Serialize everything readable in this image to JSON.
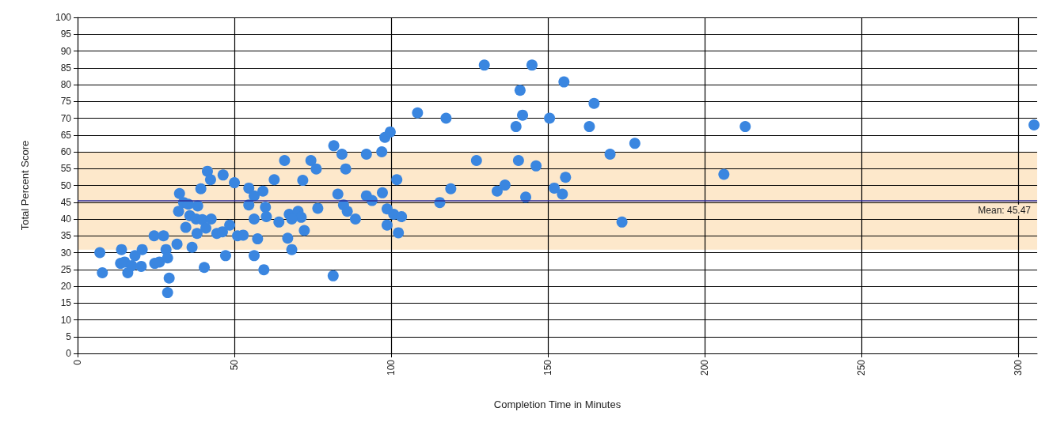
{
  "chart_data": {
    "type": "scatter",
    "xlabel": "Completion Time in Minutes",
    "ylabel": "Total Percent Score",
    "x": [
      7.1,
      7.9,
      14.0,
      13.7,
      15.0,
      16.0,
      17.3,
      18.3,
      20.6,
      20.3,
      24.4,
      24.6,
      26.1,
      27.4,
      28.2,
      28.7,
      29.2,
      28.7,
      31.7,
      32.5,
      33.8,
      35.3,
      38.3,
      32.2,
      35.8,
      37.8,
      39.8,
      42.6,
      34.5,
      38.1,
      40.9,
      44.4,
      46.2,
      48.5,
      36.5,
      40.4,
      47.2,
      41.4,
      42.4,
      39.3,
      46.4,
      50.0,
      51.0,
      52.8,
      54.6,
      54.6,
      56.3,
      59.1,
      59.9,
      60.2,
      56.3,
      57.4,
      56.3,
      59.4,
      66.0,
      62.7,
      64.2,
      67.0,
      68.3,
      67.5,
      70.3,
      71.3,
      68.3,
      72.3,
      71.8,
      74.4,
      76.1,
      76.6,
      81.7,
      84.3,
      85.5,
      83.0,
      84.8,
      86.0,
      88.6,
      81.5,
      92.1,
      97.0,
      98.0,
      99.7,
      101.8,
      92.1,
      93.9,
      97.2,
      98.7,
      100.8,
      103.3,
      98.7,
      102.3,
      129.7,
      144.9,
      155.1,
      141.1,
      164.7,
      108.4,
      117.5,
      141.9,
      150.5,
      139.8,
      163.2,
      177.7,
      169.8,
      127.2,
      140.6,
      146.2,
      155.6,
      119.0,
      136.3,
      133.8,
      152.0,
      154.6,
      115.5,
      142.9,
      173.6,
      212.9,
      206.1,
      305
    ],
    "values": [
      30.0,
      24.0,
      30.9,
      26.8,
      27.2,
      24.0,
      26.1,
      29.1,
      30.9,
      25.9,
      35.0,
      26.8,
      27.2,
      35.0,
      30.9,
      28.4,
      22.4,
      18.1,
      32.5,
      47.6,
      44.9,
      44.4,
      43.9,
      42.3,
      41.0,
      40.0,
      39.8,
      40.0,
      37.5,
      35.7,
      37.3,
      35.7,
      36.2,
      38.2,
      31.6,
      25.6,
      29.1,
      54.2,
      51.7,
      49.0,
      53.1,
      50.8,
      35.0,
      35.2,
      49.2,
      44.2,
      46.9,
      48.3,
      43.5,
      40.7,
      40.0,
      34.1,
      29.1,
      24.9,
      57.4,
      51.7,
      39.1,
      34.3,
      30.9,
      41.4,
      42.3,
      40.5,
      40.0,
      36.6,
      51.5,
      57.4,
      54.9,
      43.2,
      61.8,
      59.3,
      54.9,
      47.4,
      44.2,
      42.3,
      40.0,
      23.1,
      59.3,
      60.0,
      64.3,
      65.9,
      51.7,
      46.9,
      45.5,
      47.8,
      43.0,
      41.4,
      40.7,
      38.2,
      35.9,
      85.8,
      85.8,
      80.8,
      78.3,
      74.4,
      71.6,
      70.0,
      70.9,
      70.0,
      67.5,
      67.5,
      62.5,
      59.3,
      57.4,
      57.4,
      55.8,
      52.4,
      49.0,
      50.1,
      48.3,
      49.2,
      47.4,
      44.9,
      46.5,
      39.1,
      67.5,
      53.3,
      68
    ],
    "color": "#3a86e0",
    "marker": "circle",
    "grid": true,
    "xlim": [
      0,
      306
    ],
    "xticks": [
      0,
      50,
      100,
      150,
      200,
      250,
      300
    ],
    "ylim": [
      0,
      100
    ],
    "yticks": [
      0,
      5,
      10,
      15,
      20,
      25,
      30,
      35,
      40,
      45,
      50,
      55,
      60,
      65,
      70,
      75,
      80,
      85,
      90,
      95,
      100
    ],
    "ref_lines": [
      {
        "axis": "y",
        "value": 45.47,
        "label": "Mean: 45.47",
        "color": "#2b2b9a",
        "line_style": "solid"
      }
    ],
    "bands": [
      {
        "axis": "y",
        "from": 30.9,
        "to": 60.0,
        "color": "#fde8cb"
      }
    ]
  }
}
